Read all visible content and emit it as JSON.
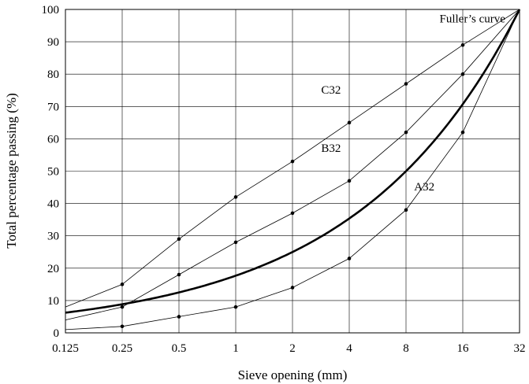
{
  "chart_data": {
    "type": "line",
    "title": "",
    "xlabel": "Sieve opening (mm)",
    "ylabel": "Total percentage passing (%)",
    "x_scale": "log2",
    "x_ticks": [
      0.125,
      0.25,
      0.5,
      1,
      2,
      4,
      8,
      16,
      32
    ],
    "x_tick_labels": [
      "0.125",
      "0.25",
      "0.5",
      "1",
      "2",
      "4",
      "8",
      "16",
      "32"
    ],
    "ylim": [
      0,
      100
    ],
    "y_ticks": [
      0,
      10,
      20,
      30,
      40,
      50,
      60,
      70,
      80,
      90,
      100
    ],
    "y_tick_labels": [
      "0",
      "10",
      "20",
      "30",
      "40",
      "50",
      "60",
      "70",
      "80",
      "90",
      "100"
    ],
    "grid": true,
    "legend": "none",
    "series": [
      {
        "name": "C32",
        "style": "thin-markers",
        "x": [
          0.125,
          0.25,
          0.5,
          1,
          2,
          4,
          8,
          16,
          32
        ],
        "values": [
          8,
          15,
          29,
          42,
          53,
          65,
          77,
          89,
          100
        ]
      },
      {
        "name": "B32",
        "style": "thin-markers",
        "x": [
          0.125,
          0.25,
          0.5,
          1,
          2,
          4,
          8,
          16,
          32
        ],
        "values": [
          4,
          8,
          18,
          28,
          37,
          47,
          62,
          80,
          100
        ]
      },
      {
        "name": "A32",
        "style": "thin-markers",
        "x": [
          0.125,
          0.25,
          0.5,
          1,
          2,
          4,
          8,
          16,
          32
        ],
        "values": [
          1,
          2,
          5,
          8,
          14,
          23,
          38,
          62,
          100
        ]
      },
      {
        "name": "Fuller’s curve",
        "style": "thick-smooth",
        "exponent": 0.5,
        "dmax": 32
      }
    ],
    "annotations": [
      {
        "text": "Fuller’s curve",
        "series": "Fuller’s curve",
        "x": 18,
        "y": 96
      },
      {
        "text": "C32",
        "series": "C32",
        "x": 3.2,
        "y": 74
      },
      {
        "text": "B32",
        "series": "B32",
        "x": 3.2,
        "y": 56
      },
      {
        "text": "A32",
        "series": "A32",
        "x": 10,
        "y": 44
      }
    ]
  }
}
